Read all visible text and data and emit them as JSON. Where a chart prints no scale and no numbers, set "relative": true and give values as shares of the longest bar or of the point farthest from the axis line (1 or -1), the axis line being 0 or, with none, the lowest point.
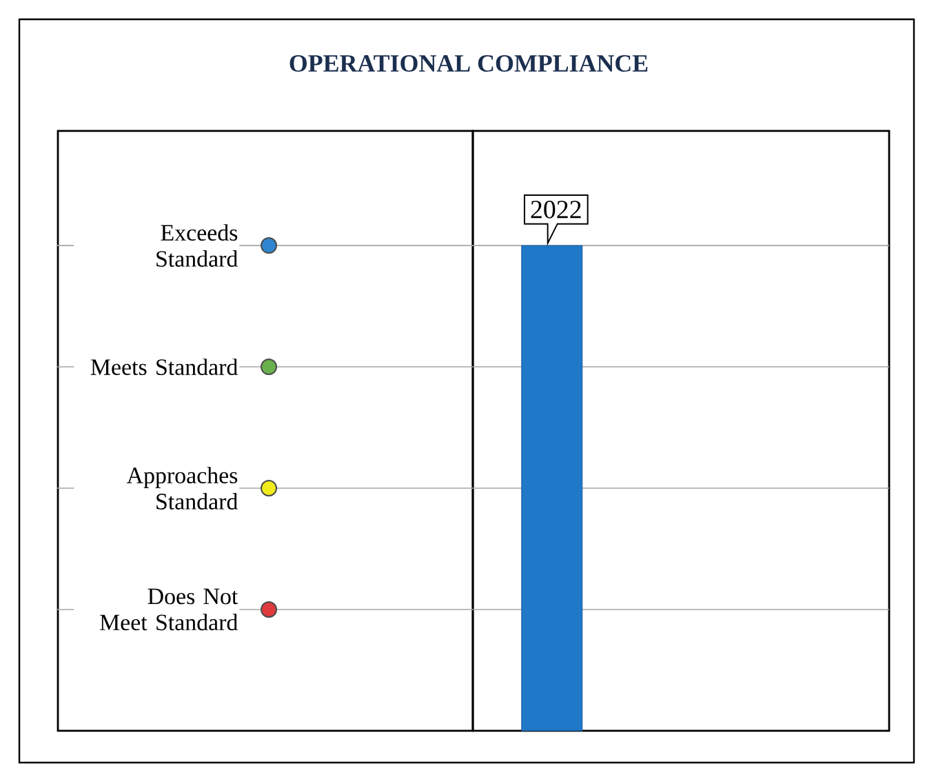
{
  "chart_data": {
    "type": "bar",
    "title": "OPERATIONAL COMPLIANCE",
    "categories": [
      "2022"
    ],
    "values": [
      1
    ],
    "color": "#1f78c8",
    "relative": true,
    "ref_lines": [
      {
        "axis": "y",
        "value": 0.25,
        "label": "Does Not Meet Standard"
      },
      {
        "axis": "y",
        "value": 0.5,
        "label": "Approaches Standard"
      },
      {
        "axis": "y",
        "value": 0.75,
        "label": "Meets Standard"
      },
      {
        "axis": "y",
        "value": 1,
        "label": "Exceeds Standard"
      }
    ]
  }
}
